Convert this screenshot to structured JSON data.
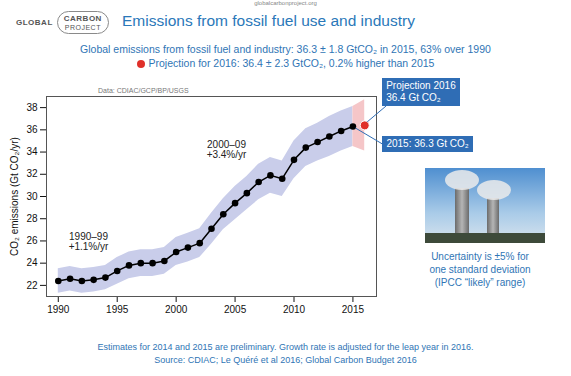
{
  "header": {
    "url": "globalcarbonproject.org",
    "logo": [
      "GLOBAL",
      "CARBON",
      "PROJECT"
    ],
    "title": "Emissions from fossil fuel use and industry",
    "subtitle": [
      "Global emissions from fossil fuel and industry: 36.3 ± 1.8 GtCO₂ in 2015, 63% over 1990",
      "Projection for 2016: 36.4 ± 2.3 GtCO₂, 0.2% higher than 2015"
    ]
  },
  "chart_data": {
    "type": "line",
    "data_source": "Data: CDIAC/GCP/BP/USGS",
    "ylabel": "CO₂ emissions (Gt CO₂/yr)",
    "x": [
      1990,
      1991,
      1992,
      1993,
      1994,
      1995,
      1996,
      1997,
      1998,
      1999,
      2000,
      2001,
      2002,
      2003,
      2004,
      2005,
      2006,
      2007,
      2008,
      2009,
      2010,
      2011,
      2012,
      2013,
      2014,
      2015
    ],
    "values": [
      22.4,
      22.6,
      22.4,
      22.5,
      22.7,
      23.3,
      23.8,
      24.0,
      24.0,
      24.2,
      25.0,
      25.4,
      25.8,
      27.1,
      28.4,
      29.4,
      30.3,
      31.3,
      31.9,
      31.6,
      33.3,
      34.4,
      34.9,
      35.4,
      35.9,
      36.3
    ],
    "color": "#000000",
    "marker": "circle",
    "band": {
      "lower": [
        21.3,
        21.5,
        21.3,
        21.4,
        21.6,
        22.1,
        22.6,
        22.8,
        22.8,
        23.0,
        23.8,
        24.1,
        24.5,
        25.7,
        27.0,
        27.9,
        28.8,
        29.7,
        30.3,
        30.0,
        31.6,
        32.7,
        33.2,
        33.6,
        34.1,
        34.5
      ],
      "upper": [
        23.5,
        23.7,
        23.5,
        23.6,
        23.8,
        24.5,
        25.0,
        25.2,
        25.2,
        25.4,
        26.3,
        26.7,
        27.1,
        28.5,
        29.8,
        30.9,
        31.8,
        32.9,
        33.5,
        33.2,
        35.0,
        36.1,
        36.6,
        37.2,
        37.7,
        38.1
      ],
      "color": "#c9cdea"
    },
    "projection": {
      "x": [
        2016
      ],
      "values": [
        36.4
      ],
      "color": "#e0302a",
      "marker": "circle"
    },
    "projection_band": {
      "x": [
        2015,
        2016
      ],
      "lower": [
        34.5,
        34.1
      ],
      "upper": [
        38.1,
        38.7
      ],
      "color": "#f5c6c8"
    },
    "xlim": [
      1989,
      2017
    ],
    "xticks": [
      1990,
      1995,
      2000,
      2005,
      2010,
      2015
    ],
    "ylim": [
      21,
      39
    ],
    "yticks": [
      22,
      24,
      26,
      28,
      30,
      32,
      34,
      36,
      38
    ],
    "grid": false,
    "annotations": [
      "1990–99\n+1.1%/yr",
      "2000–09\n+3.4%/yr"
    ],
    "callouts": {
      "projection": "Projection 2016\n36.4 Gt CO₂",
      "last": "2015: 36.3 Gt CO₂"
    }
  },
  "side_note": [
    "Uncertainty is ±5% for",
    "one standard deviation",
    "(IPCC “likely” range)"
  ],
  "footer": [
    "Estimates for 2014 and 2015 are preliminary. Growth rate is adjusted for the leap year in 2016.",
    "Source: CDIAC; Le Quéré et al 2016; Global Carbon Budget 2016"
  ]
}
